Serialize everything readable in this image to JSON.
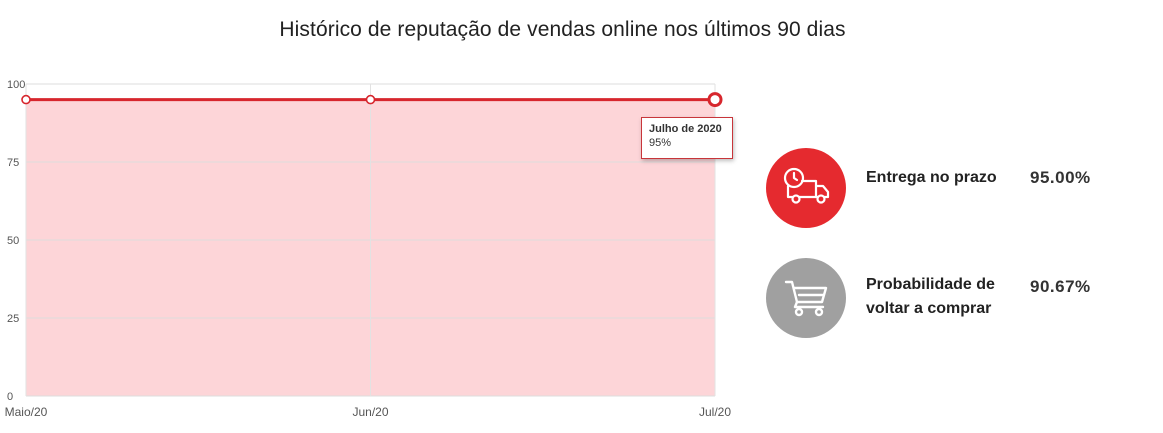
{
  "chart_data": {
    "type": "area",
    "title": "Histórico de reputação de vendas online nos últimos 90 dias",
    "categories": [
      "Maio/20",
      "Jun/20",
      "Jul/20"
    ],
    "series": [
      {
        "values": [
          95,
          95,
          95
        ]
      }
    ],
    "ylim": [
      0,
      100
    ],
    "y_ticks": [
      0,
      25,
      50,
      75,
      100
    ],
    "grid": true,
    "line_color": "#d7262d",
    "fill_color": "#fdd5d8",
    "tooltip": {
      "title": "Julho de 2020",
      "value": "95%"
    }
  },
  "stats": [
    {
      "label": "Entrega no prazo",
      "value": "95.00%",
      "icon": "delivery-truck-clock-icon",
      "color": "#e52a2f"
    },
    {
      "label": "Probabilidade de voltar a comprar",
      "value": "90.67%",
      "icon": "shopping-cart-icon",
      "color": "#a0a0a0"
    }
  ]
}
